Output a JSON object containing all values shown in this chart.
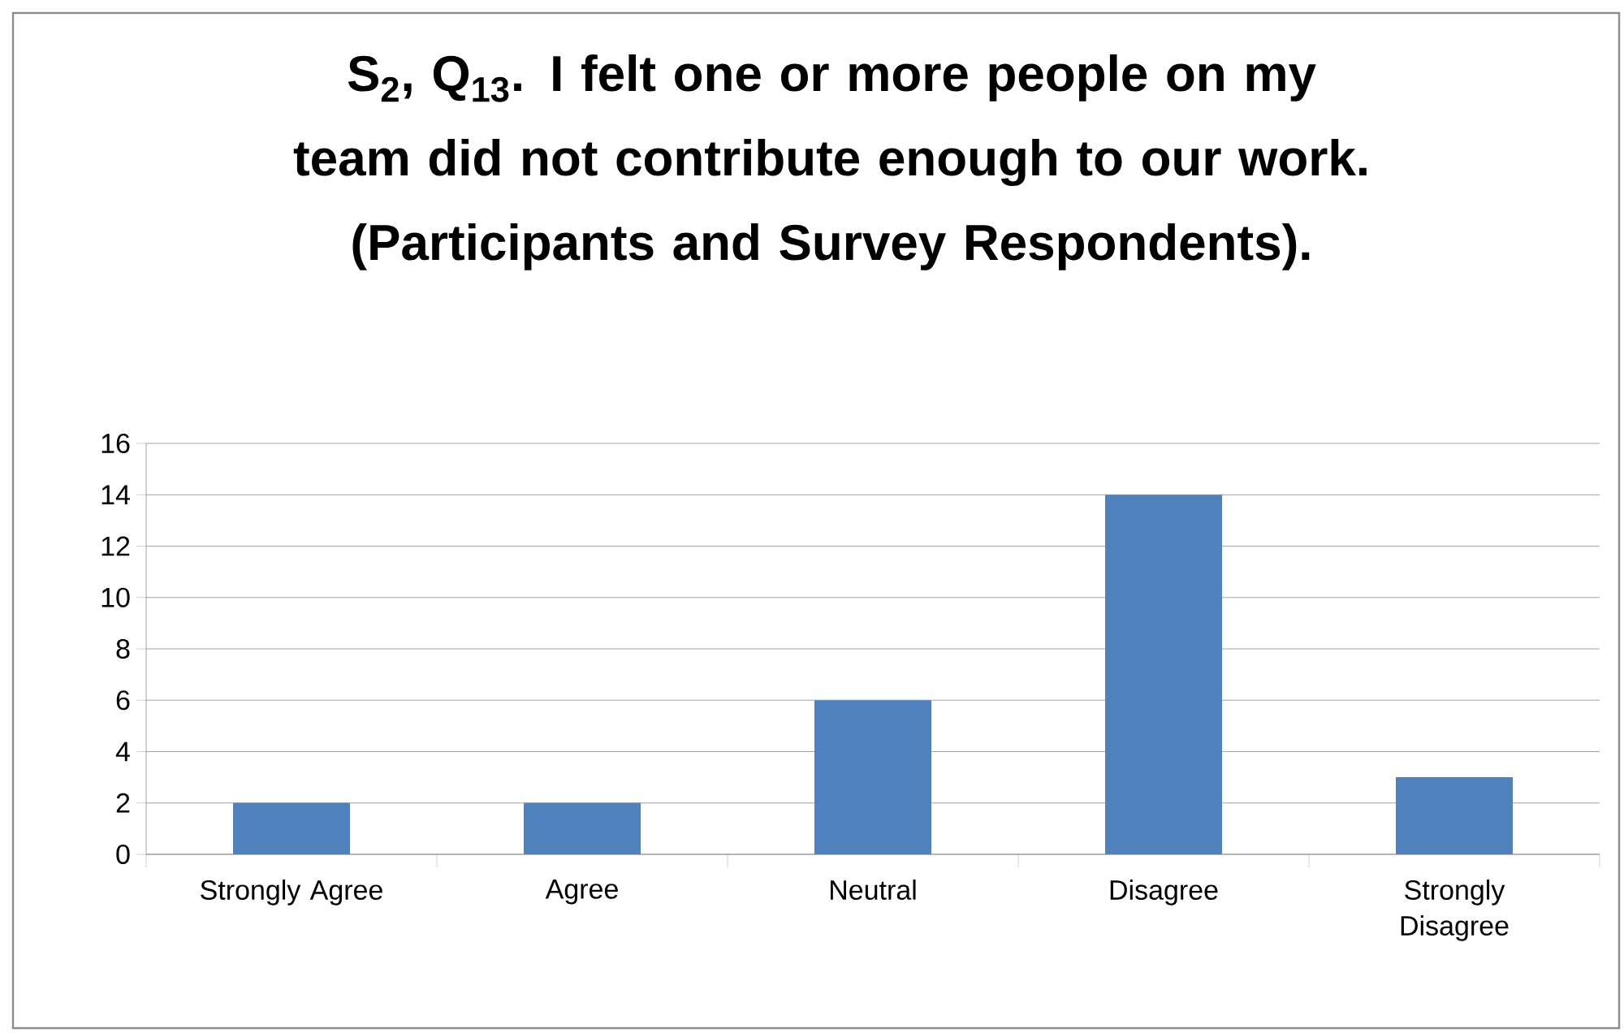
{
  "chart_data": {
    "type": "bar",
    "title": "S$_{2}$, Q$_{13}$. I felt one or more people on my team did not contribute enough to our work. (Participants and Survey Respondents).",
    "categories": [
      "Strongly Agree",
      "Agree",
      "Neutral",
      "Disagree",
      "Strongly Disagree"
    ],
    "values": [
      2,
      2,
      6,
      14,
      3
    ],
    "color": "#4f81bd",
    "ylim": [
      0,
      16
    ],
    "yticks": [
      0,
      2,
      4,
      6,
      8,
      10,
      12,
      14,
      16
    ],
    "grid": "y"
  }
}
